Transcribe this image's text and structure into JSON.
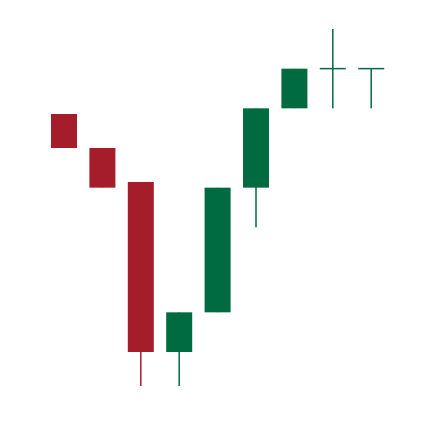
{
  "chart_data": {
    "type": "candlestick",
    "title": "",
    "xlabel": "",
    "ylabel": "",
    "grid": false,
    "legend": "none",
    "colors": {
      "up": "#006a40",
      "down": "#a51d2a",
      "background": "#ffffff"
    },
    "ylim": [
      0,
      36
    ],
    "candles": [
      {
        "open": 27,
        "high": 27,
        "low": 24,
        "close": 24
      },
      {
        "open": 24,
        "high": 24,
        "low": 20.5,
        "close": 20.5
      },
      {
        "open": 21,
        "high": 21,
        "low": 3,
        "close": 6
      },
      {
        "open": 6,
        "high": 9.5,
        "low": 3,
        "close": 9.5
      },
      {
        "open": 9.5,
        "high": 20.5,
        "low": 9.5,
        "close": 20.5
      },
      {
        "open": 20.5,
        "high": 27.5,
        "low": 17,
        "close": 27.5
      },
      {
        "open": 27.5,
        "high": 31,
        "low": 27.5,
        "close": 31
      },
      {
        "open": 31,
        "high": 34.5,
        "low": 27.5,
        "close": 31
      },
      {
        "open": 31,
        "high": 31,
        "low": 27.5,
        "close": 31
      }
    ]
  }
}
